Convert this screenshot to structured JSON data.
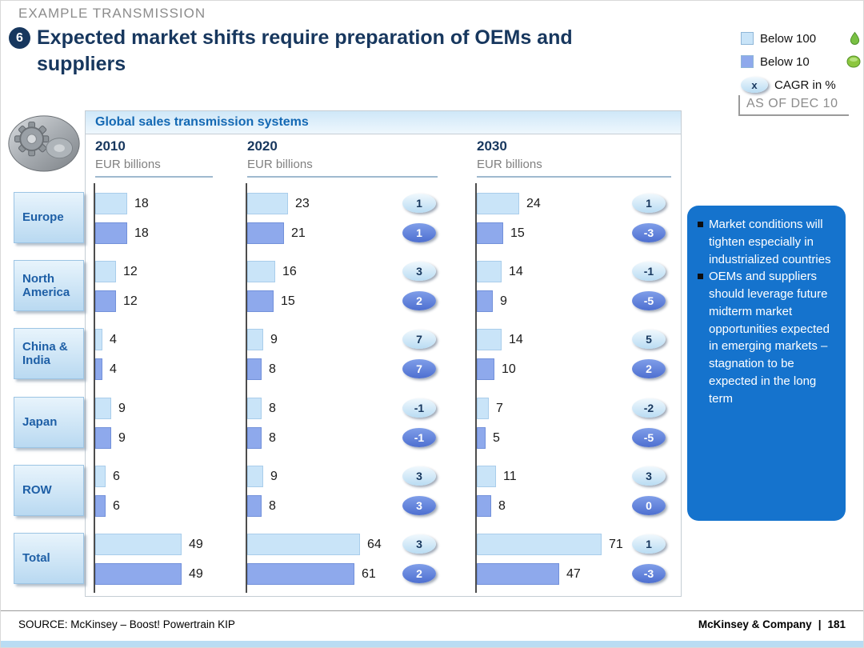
{
  "header": {
    "eyebrow": "EXAMPLE TRANSMISSION",
    "badge": "6",
    "title": "Expected market shifts require preparation of OEMs and suppliers",
    "accent_color": "#17375e"
  },
  "legend": {
    "items": [
      {
        "label": "Below 100",
        "color": "#c9e4f8",
        "icon": "green-drop-icon"
      },
      {
        "label": "Below 10",
        "color": "#8ea9ec",
        "icon": "green-leaf-icon"
      }
    ],
    "cagr_symbol": "x",
    "cagr_label": "CAGR in %",
    "as_of": "AS OF DEC 10"
  },
  "chart_data": {
    "type": "bar",
    "orientation": "horizontal",
    "title": "Global sales transmission systems",
    "value_unit": "EUR billions",
    "columns": [
      "2010",
      "2020",
      "2030"
    ],
    "series": [
      "Below 100",
      "Below 10"
    ],
    "series_colors": [
      "#c9e4f8",
      "#8ea9ec"
    ],
    "cagr_note": "CAGR in %, shown for 2020 and 2030 columns",
    "xlim": [
      0,
      75
    ],
    "grid": false,
    "legend_position": "top-right",
    "rows": [
      {
        "region": "Europe",
        "values": [
          [
            18,
            18
          ],
          [
            23,
            21
          ],
          [
            24,
            15
          ]
        ],
        "cagr": [
          null,
          [
            1,
            1
          ],
          [
            1,
            -3
          ]
        ]
      },
      {
        "region": "North America",
        "values": [
          [
            12,
            12
          ],
          [
            16,
            15
          ],
          [
            14,
            9
          ]
        ],
        "cagr": [
          null,
          [
            3,
            2
          ],
          [
            -1,
            -5
          ]
        ]
      },
      {
        "region": "China & India",
        "values": [
          [
            4,
            4
          ],
          [
            9,
            8
          ],
          [
            14,
            10
          ]
        ],
        "cagr": [
          null,
          [
            7,
            7
          ],
          [
            5,
            2
          ]
        ]
      },
      {
        "region": "Japan",
        "values": [
          [
            9,
            9
          ],
          [
            8,
            8
          ],
          [
            7,
            5
          ]
        ],
        "cagr": [
          null,
          [
            -1,
            -1
          ],
          [
            -2,
            -5
          ]
        ]
      },
      {
        "region": "ROW",
        "values": [
          [
            6,
            6
          ],
          [
            9,
            8
          ],
          [
            11,
            8
          ]
        ],
        "cagr": [
          null,
          [
            3,
            3
          ],
          [
            3,
            0
          ]
        ]
      },
      {
        "region": "Total",
        "values": [
          [
            49,
            49
          ],
          [
            64,
            61
          ],
          [
            71,
            47
          ]
        ],
        "cagr": [
          null,
          [
            3,
            2
          ],
          [
            1,
            -3
          ]
        ]
      }
    ]
  },
  "notes": {
    "background": "#1573cd",
    "bullets": [
      "Market conditions will tighten especially in industrialized countries",
      "OEMs and suppliers should leverage future midterm market opportunities expected in emerging markets – stagnation to be expected in the long term"
    ]
  },
  "footer": {
    "source": "SOURCE: McKinsey – Boost! Powertrain KIP",
    "brand": "McKinsey & Company",
    "separator": "|",
    "page": "181"
  }
}
